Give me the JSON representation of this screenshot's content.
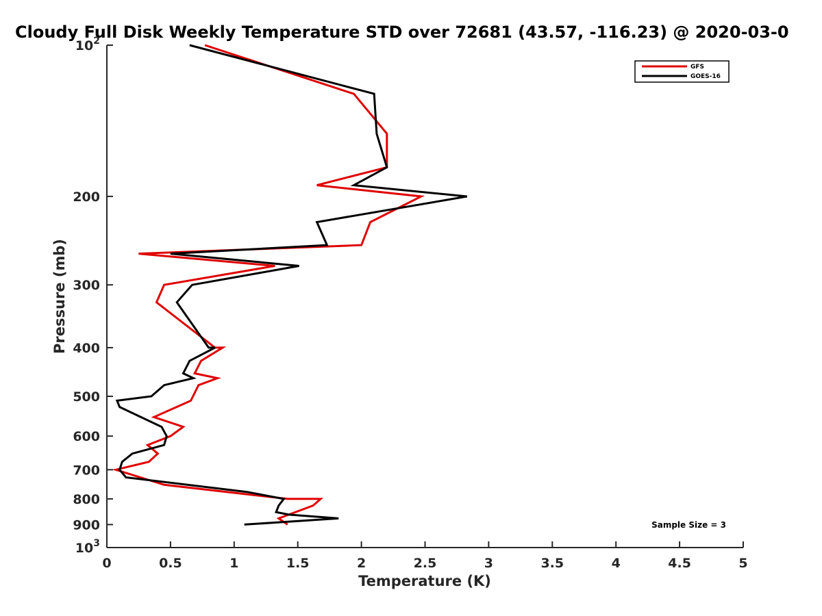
{
  "chart_data": {
    "type": "line",
    "title": "Cloudy Full Disk Weekly Temperature STD over 72681 (43.57, -116.23) @ 2020-03-0",
    "xlabel": "Temperature (K)",
    "ylabel": "Pressure (mb)",
    "xlim": [
      0,
      5
    ],
    "ylim": [
      100,
      1000
    ],
    "y_scale": "log",
    "y_reversed": true,
    "grid": false,
    "legend_position": "top-right",
    "x_ticks": [
      0,
      0.5,
      1,
      1.5,
      2,
      2.5,
      3,
      3.5,
      4,
      4.5,
      5
    ],
    "x_tick_labels": [
      "0",
      "0.5",
      "1",
      "1.5",
      "2",
      "2.5",
      "3",
      "3.5",
      "4",
      "4.5",
      "5"
    ],
    "y_ticks": [
      100,
      200,
      300,
      400,
      500,
      600,
      700,
      800,
      900,
      1000
    ],
    "y_tick_labels": [
      {
        "base": "10",
        "exp": "2"
      },
      {
        "base": "200",
        "exp": ""
      },
      {
        "base": "300",
        "exp": ""
      },
      {
        "base": "400",
        "exp": ""
      },
      {
        "base": "500",
        "exp": ""
      },
      {
        "base": "600",
        "exp": ""
      },
      {
        "base": "700",
        "exp": ""
      },
      {
        "base": "800",
        "exp": ""
      },
      {
        "base": "900",
        "exp": ""
      },
      {
        "base": "10",
        "exp": "3"
      }
    ],
    "annotation": "Sample Size = 3",
    "series": [
      {
        "name": "GFS",
        "color": "#e00000",
        "points": [
          [
            0.77,
            100
          ],
          [
            1.94,
            125
          ],
          [
            2.2,
            150
          ],
          [
            2.2,
            175
          ],
          [
            1.65,
            190
          ],
          [
            2.47,
            200
          ],
          [
            2.07,
            225
          ],
          [
            2.0,
            250
          ],
          [
            0.25,
            260
          ],
          [
            1.32,
            275
          ],
          [
            0.45,
            300
          ],
          [
            0.39,
            325
          ],
          [
            0.85,
            400
          ],
          [
            0.91,
            400
          ],
          [
            0.74,
            425
          ],
          [
            0.69,
            450
          ],
          [
            0.87,
            460
          ],
          [
            0.72,
            475
          ],
          [
            0.66,
            510
          ],
          [
            0.37,
            550
          ],
          [
            0.6,
            575
          ],
          [
            0.5,
            600
          ],
          [
            0.32,
            625
          ],
          [
            0.4,
            650
          ],
          [
            0.33,
            675
          ],
          [
            0.07,
            700
          ],
          [
            0.45,
            750
          ],
          [
            1.42,
            800
          ],
          [
            1.68,
            800
          ],
          [
            1.62,
            825
          ],
          [
            1.35,
            875
          ],
          [
            1.42,
            900
          ]
        ]
      },
      {
        "name": "GOES-16",
        "color": "#000000",
        "points": [
          [
            0.65,
            100
          ],
          [
            2.1,
            125
          ],
          [
            2.12,
            150
          ],
          [
            2.2,
            175
          ],
          [
            1.94,
            190
          ],
          [
            2.83,
            200
          ],
          [
            1.65,
            225
          ],
          [
            1.73,
            250
          ],
          [
            0.5,
            260
          ],
          [
            1.51,
            275
          ],
          [
            0.67,
            300
          ],
          [
            0.55,
            325
          ],
          [
            0.8,
            400
          ],
          [
            0.85,
            400
          ],
          [
            0.65,
            425
          ],
          [
            0.6,
            450
          ],
          [
            0.68,
            460
          ],
          [
            0.45,
            475
          ],
          [
            0.35,
            500
          ],
          [
            0.08,
            510
          ],
          [
            0.1,
            525
          ],
          [
            0.43,
            575
          ],
          [
            0.47,
            600
          ],
          [
            0.45,
            625
          ],
          [
            0.2,
            650
          ],
          [
            0.12,
            675
          ],
          [
            0.1,
            700
          ],
          [
            0.15,
            725
          ],
          [
            1.1,
            775
          ],
          [
            1.39,
            800
          ],
          [
            1.35,
            825
          ],
          [
            1.33,
            850
          ],
          [
            1.43,
            860
          ],
          [
            1.82,
            875
          ],
          [
            1.08,
            900
          ]
        ]
      }
    ]
  }
}
